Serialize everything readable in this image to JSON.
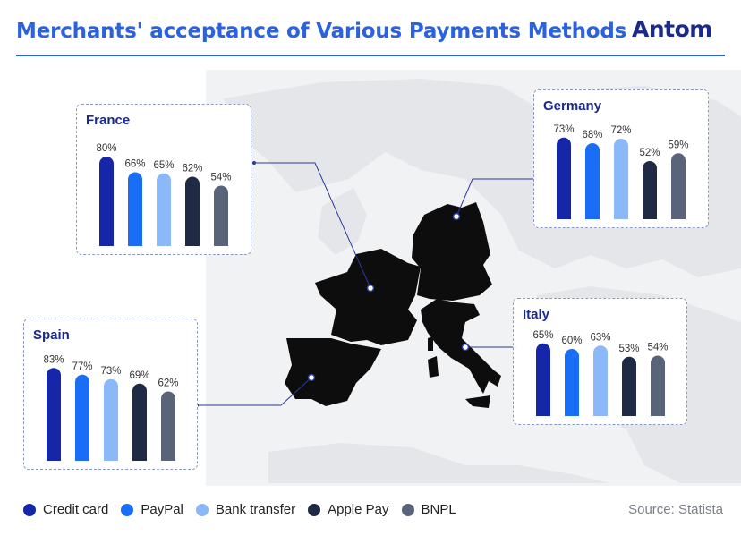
{
  "header": {
    "title": "Merchants' acceptance of Various Payments Methods",
    "logo_text": "Antom"
  },
  "legend": [
    {
      "label": "Credit card",
      "color": "#1527a8"
    },
    {
      "label": "PayPal",
      "color": "#1a6ef5"
    },
    {
      "label": "Bank transfer",
      "color": "#8ab8f8"
    },
    {
      "label": "Apple Pay",
      "color": "#1f2a44"
    },
    {
      "label": "BNPL",
      "color": "#5a6478"
    }
  ],
  "source": "Source: Statista",
  "chart_data": [
    {
      "type": "bar",
      "title": "France",
      "categories": [
        "Credit card",
        "PayPal",
        "Bank transfer",
        "Apple Pay",
        "BNPL"
      ],
      "values": [
        80,
        66,
        65,
        62,
        54
      ],
      "data_labels": [
        "80%",
        "66%",
        "65%",
        "62%",
        "54%"
      ]
    },
    {
      "type": "bar",
      "title": "Germany",
      "categories": [
        "Credit card",
        "PayPal",
        "Bank transfer",
        "Apple Pay",
        "BNPL"
      ],
      "values": [
        73,
        68,
        72,
        52,
        59
      ],
      "data_labels": [
        "73%",
        "68%",
        "72%",
        "52%",
        "59%"
      ]
    },
    {
      "type": "bar",
      "title": "Spain",
      "categories": [
        "Credit card",
        "PayPal",
        "Bank transfer",
        "Apple Pay",
        "BNPL"
      ],
      "values": [
        83,
        77,
        73,
        69,
        62
      ],
      "data_labels": [
        "83%",
        "77%",
        "73%",
        "69%",
        "62%"
      ]
    },
    {
      "type": "bar",
      "title": "Italy",
      "categories": [
        "Credit card",
        "PayPal",
        "Bank transfer",
        "Apple Pay",
        "BNPL"
      ],
      "values": [
        65,
        60,
        63,
        53,
        54
      ],
      "data_labels": [
        "65%",
        "60%",
        "63%",
        "53%",
        "54%"
      ]
    }
  ]
}
